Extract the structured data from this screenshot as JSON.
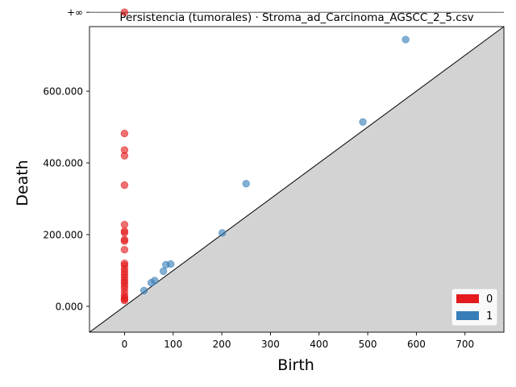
{
  "chart_data": {
    "type": "scatter",
    "title": "Persistencia (tumorales) · Stroma_ad_Carcinoma_AGSCC_2_5.csv",
    "xlabel": "Birth",
    "ylabel": "Death",
    "xlim": [
      -72,
      780
    ],
    "ylim": [
      -72,
      780
    ],
    "x_ticks": [
      0,
      100,
      200,
      300,
      400,
      500,
      600,
      700
    ],
    "x_tick_labels": [
      "0",
      "100",
      "200",
      "300",
      "400",
      "500",
      "600",
      "700"
    ],
    "y_ticks": [
      0,
      200,
      400,
      600
    ],
    "y_tick_labels": [
      "0.000",
      "200.000",
      "400.000",
      "600.000"
    ],
    "infinity_value": 820,
    "infinity_label": "+∞",
    "grid": false,
    "legend_position": "bottom-right",
    "series": [
      {
        "name": "0",
        "color": "#e41a1c",
        "points": [
          [
            0,
            820
          ],
          [
            0,
            482
          ],
          [
            0,
            436
          ],
          [
            0,
            420
          ],
          [
            0,
            338
          ],
          [
            0,
            228
          ],
          [
            0,
            210
          ],
          [
            0,
            205
          ],
          [
            0,
            186
          ],
          [
            0,
            182
          ],
          [
            0,
            158
          ],
          [
            0,
            120
          ],
          [
            0,
            114
          ],
          [
            0,
            104
          ],
          [
            0,
            96
          ],
          [
            0,
            88
          ],
          [
            0,
            80
          ],
          [
            0,
            72
          ],
          [
            0,
            66
          ],
          [
            0,
            58
          ],
          [
            0,
            50
          ],
          [
            0,
            40
          ],
          [
            0,
            30
          ],
          [
            0,
            24
          ],
          [
            0,
            20
          ],
          [
            0,
            16
          ]
        ]
      },
      {
        "name": "1",
        "color": "#377eb8",
        "points": [
          [
            40,
            44
          ],
          [
            55,
            66
          ],
          [
            62,
            72
          ],
          [
            80,
            98
          ],
          [
            85,
            116
          ],
          [
            95,
            118
          ],
          [
            201,
            205
          ],
          [
            250,
            342
          ],
          [
            490,
            514
          ],
          [
            578,
            744
          ]
        ]
      }
    ]
  }
}
